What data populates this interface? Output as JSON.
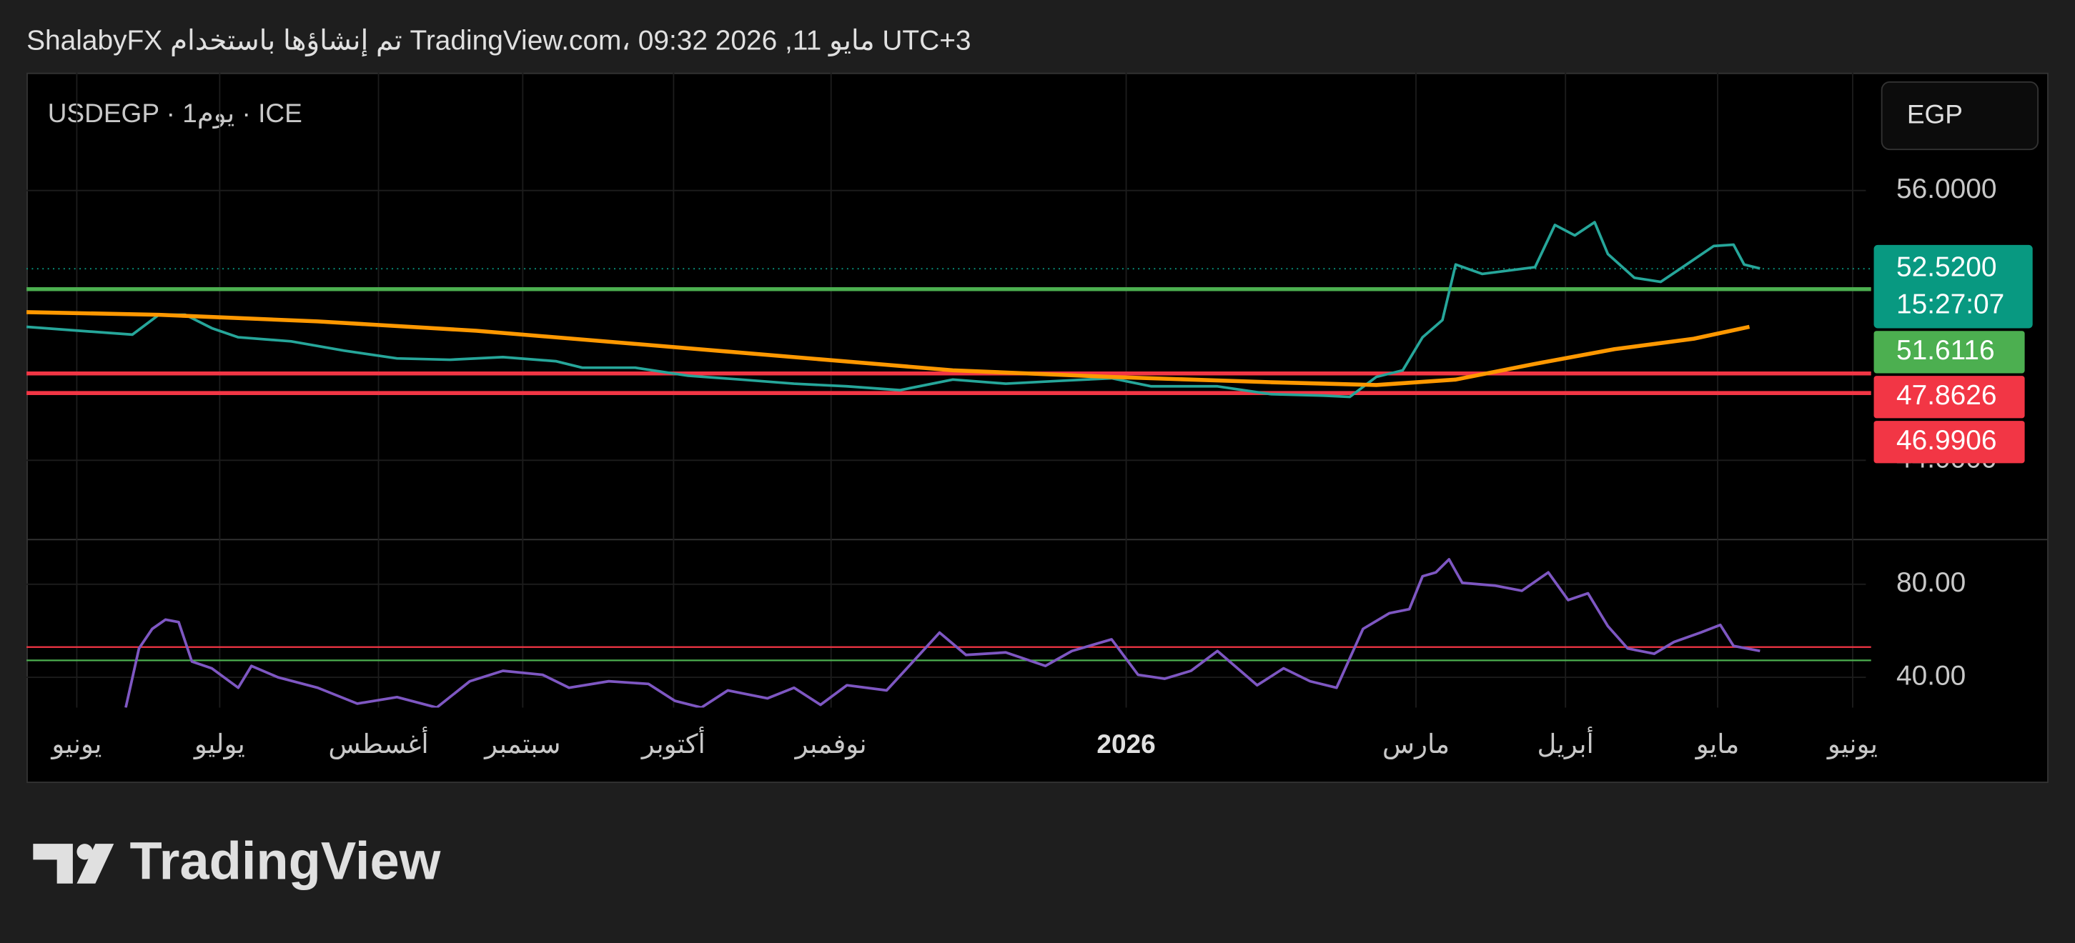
{
  "header": {
    "title": "ShalabyFX تم إنشاؤها باستخدام TradingView.com، 09:32 2026 ,11 مايو UTC+3"
  },
  "footer": {
    "logo": "TradingView"
  },
  "chart_data": [
    {
      "type": "line",
      "title": "USDEGP · 1يوم · ICE",
      "currency": "EGP",
      "xlim": [
        0,
        278
      ],
      "ylim": [
        40.47,
        61.24
      ],
      "yticks": [
        {
          "value": 56,
          "label": "56.0000"
        },
        {
          "value": 44,
          "label": "44.0000"
        }
      ],
      "xticks": [
        {
          "value": 7.6,
          "label": "يونيو"
        },
        {
          "value": 29.2,
          "label": "يوليو"
        },
        {
          "value": 53.2,
          "label": "أغسطس"
        },
        {
          "value": 75,
          "label": "سبتمبر"
        },
        {
          "value": 97.8,
          "label": "أكتوبر"
        },
        {
          "value": 121.6,
          "label": "نوفمبر"
        },
        {
          "value": 166.2,
          "label": "2026"
        },
        {
          "value": 210,
          "label": "مارس"
        },
        {
          "value": 232.6,
          "label": "أبريل"
        },
        {
          "value": 255.6,
          "label": "مايو"
        },
        {
          "value": 276,
          "label": "يونيو"
        }
      ],
      "grid": true,
      "series": [
        {
          "color": "#26a69a",
          "x": [
            0,
            8,
            16,
            20,
            24,
            28,
            32,
            40,
            48,
            56,
            64,
            72,
            80,
            84,
            92,
            100,
            108,
            116,
            124,
            132,
            140,
            148,
            156,
            164,
            170,
            180,
            188,
            196,
            200,
            204,
            208,
            211,
            214,
            216,
            220,
            228,
            231,
            234,
            237,
            239,
            243,
            247,
            250,
            255,
            258,
            259.6,
            262
          ],
          "values": [
            49.94,
            49.76,
            49.59,
            50.47,
            50.47,
            49.88,
            49.47,
            49.29,
            48.88,
            48.53,
            48.47,
            48.59,
            48.41,
            48.12,
            48.12,
            47.76,
            47.59,
            47.41,
            47.29,
            47.12,
            47.59,
            47.41,
            47.53,
            47.65,
            47.29,
            47.29,
            46.94,
            46.88,
            46.82,
            47.71,
            48.0,
            49.47,
            50.24,
            52.71,
            52.29,
            52.59,
            54.47,
            54.0,
            54.59,
            53.18,
            52.12,
            51.94,
            52.53,
            53.53,
            53.59,
            52.71,
            52.53
          ]
        },
        {
          "color": "#ff9800",
          "x": [
            0,
            20,
            44,
            68,
            92,
            116,
            140,
            164,
            188,
            204,
            216,
            228,
            240,
            252,
            260.4
          ],
          "values": [
            50.59,
            50.47,
            50.18,
            49.76,
            49.18,
            48.59,
            48.0,
            47.71,
            47.47,
            47.35,
            47.59,
            48.29,
            48.94,
            49.41,
            49.94
          ]
        }
      ],
      "last": {
        "value": 52.52,
        "label": "52.5200",
        "countdown": "15:27:07",
        "color": "#089981"
      },
      "levels": {
        "values": [
          51.6116,
          47.8626,
          46.9906
        ],
        "colors": [
          "#4caf50",
          "#f23645",
          "#f23645"
        ]
      }
    },
    {
      "type": "line",
      "xlim": [
        0,
        278
      ],
      "ylim": [
        27,
        98.6
      ],
      "yticks": [
        {
          "value": 80,
          "label": "80.00"
        },
        {
          "value": 40,
          "label": "40.00"
        }
      ],
      "grid": true,
      "series": [
        {
          "color": "#7e57c2",
          "x": [
            15,
            17,
            19,
            21,
            23,
            25,
            28,
            32,
            34,
            38,
            44,
            50,
            56,
            62,
            67,
            72,
            78,
            82,
            88,
            94,
            98,
            102,
            106,
            112,
            116,
            120,
            124,
            130,
            134,
            138,
            142,
            148,
            154,
            158,
            164,
            168,
            172,
            176,
            180,
            186,
            190,
            194,
            198,
            202,
            206,
            209,
            211,
            213,
            215,
            217,
            222,
            226,
            230,
            233,
            236,
            239,
            242,
            246,
            249,
            253,
            256,
            258,
            262
          ],
          "values": [
            27,
            52.4,
            60.8,
            64.8,
            63.7,
            46.8,
            43.9,
            35.5,
            44.9,
            40,
            35.5,
            28.7,
            31.5,
            27,
            38.3,
            42.8,
            41.1,
            35.5,
            38.3,
            37.2,
            29.9,
            27,
            34.4,
            31,
            35.5,
            28.2,
            36.6,
            34.4,
            46.8,
            59.2,
            49.6,
            50.7,
            44.9,
            51.3,
            56.3,
            41.1,
            39.4,
            42.8,
            51.3,
            36.6,
            43.9,
            38.3,
            35.5,
            60.8,
            67.6,
            69.3,
            83.4,
            85.1,
            90.7,
            80.6,
            79.4,
            77.2,
            85.1,
            73.2,
            76.1,
            62,
            52.4,
            50.1,
            55.2,
            59.2,
            62.5,
            53.5,
            51.3
          ]
        }
      ],
      "levels": {
        "values": [
          53,
          47.3
        ],
        "colors": [
          "#f23645",
          "#4caf50"
        ]
      }
    }
  ]
}
